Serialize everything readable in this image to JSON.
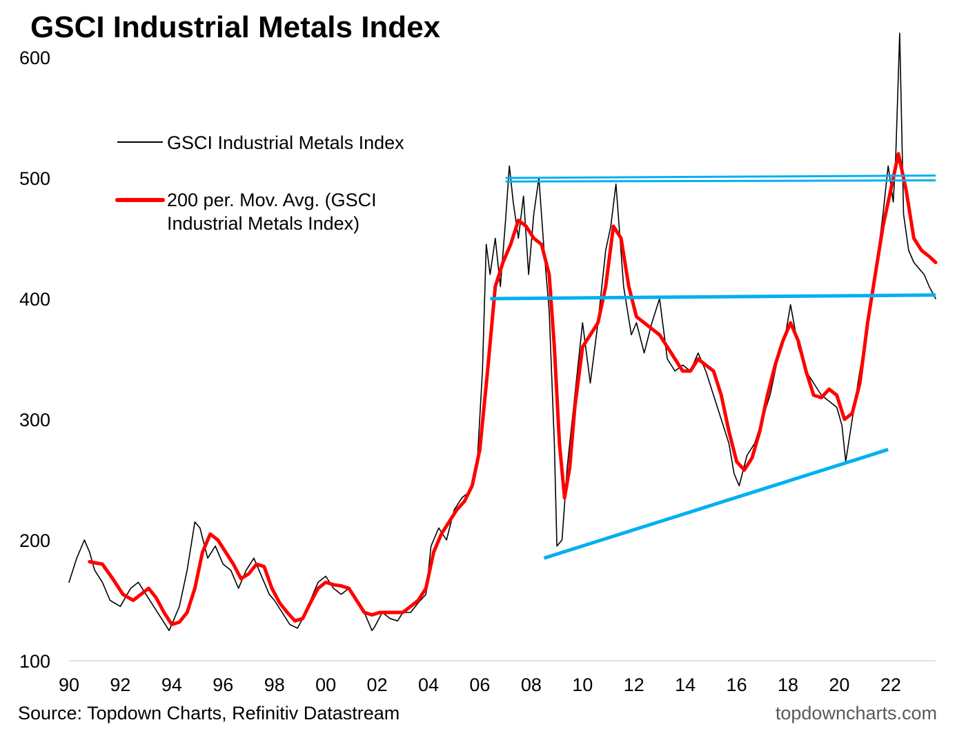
{
  "chart_data": {
    "type": "line",
    "title": "GSCI Industrial Metals Index",
    "xlabel": "",
    "ylabel": "",
    "xlim": [
      1990,
      2023.75
    ],
    "ylim": [
      100,
      620
    ],
    "y_ticks": [
      "100",
      "200",
      "300",
      "400",
      "500",
      "600"
    ],
    "x_ticks": [
      "90",
      "92",
      "94",
      "96",
      "98",
      "00",
      "02",
      "04",
      "06",
      "08",
      "10",
      "12",
      "14",
      "16",
      "18",
      "20",
      "22"
    ],
    "grid": false,
    "legend_position": "top-left",
    "series": [
      {
        "name": "GSCI Industrial Metals Index",
        "color": "#000000",
        "x": [
          1990.0,
          1990.3,
          1990.6,
          1990.8,
          1991.0,
          1991.3,
          1991.6,
          1992.0,
          1992.4,
          1992.7,
          1993.0,
          1993.3,
          1993.6,
          1993.9,
          1994.0,
          1994.3,
          1994.6,
          1994.9,
          1995.1,
          1995.4,
          1995.7,
          1996.0,
          1996.3,
          1996.6,
          1996.9,
          1997.2,
          1997.5,
          1997.8,
          1998.0,
          1998.3,
          1998.6,
          1998.9,
          1999.1,
          1999.4,
          1999.7,
          2000.0,
          2000.3,
          2000.6,
          2000.9,
          2001.2,
          2001.5,
          2001.8,
          2001.9,
          2002.2,
          2002.5,
          2002.8,
          2003.0,
          2003.3,
          2003.6,
          2003.9,
          2004.1,
          2004.4,
          2004.7,
          2005.0,
          2005.3,
          2005.6,
          2005.9,
          2006.1,
          2006.25,
          2006.4,
          2006.6,
          2006.8,
          2007.0,
          2007.15,
          2007.3,
          2007.5,
          2007.7,
          2007.9,
          2008.1,
          2008.3,
          2008.5,
          2008.7,
          2008.9,
          2009.0,
          2009.2,
          2009.4,
          2009.7,
          2010.0,
          2010.3,
          2010.6,
          2010.9,
          2011.1,
          2011.3,
          2011.6,
          2011.9,
          2012.1,
          2012.4,
          2012.7,
          2013.0,
          2013.3,
          2013.6,
          2013.9,
          2014.2,
          2014.5,
          2014.8,
          2015.1,
          2015.4,
          2015.7,
          2015.9,
          2016.1,
          2016.4,
          2016.7,
          2017.0,
          2017.3,
          2017.6,
          2017.9,
          2018.1,
          2018.4,
          2018.7,
          2019.0,
          2019.3,
          2019.6,
          2019.9,
          2020.1,
          2020.25,
          2020.5,
          2020.8,
          2021.1,
          2021.4,
          2021.7,
          2021.9,
          2022.1,
          2022.2,
          2022.35,
          2022.5,
          2022.7,
          2022.9,
          2023.1,
          2023.3,
          2023.5,
          2023.75
        ],
        "y": [
          165,
          185,
          200,
          190,
          175,
          165,
          150,
          145,
          160,
          165,
          155,
          145,
          135,
          125,
          130,
          145,
          175,
          215,
          210,
          185,
          195,
          180,
          175,
          160,
          175,
          185,
          170,
          155,
          150,
          140,
          130,
          127,
          135,
          150,
          165,
          170,
          160,
          155,
          160,
          150,
          140,
          125,
          128,
          140,
          135,
          133,
          140,
          140,
          148,
          155,
          195,
          210,
          200,
          225,
          235,
          240,
          265,
          340,
          445,
          420,
          450,
          410,
          465,
          510,
          480,
          450,
          485,
          420,
          470,
          500,
          440,
          390,
          280,
          195,
          200,
          260,
          320,
          380,
          330,
          380,
          440,
          460,
          495,
          410,
          370,
          380,
          355,
          380,
          400,
          350,
          340,
          345,
          340,
          355,
          340,
          320,
          300,
          280,
          255,
          245,
          270,
          280,
          300,
          320,
          350,
          370,
          395,
          360,
          340,
          330,
          320,
          315,
          310,
          295,
          265,
          300,
          340,
          380,
          420,
          470,
          510,
          480,
          520,
          620,
          470,
          440,
          430,
          425,
          420,
          410,
          400
        ]
      },
      {
        "name": "200 per. Mov. Avg. (GSCI Industrial Metals Index)",
        "color": "#ff0000",
        "x": [
          1990.8,
          1991.3,
          1991.7,
          1992.1,
          1992.5,
          1992.8,
          1993.1,
          1993.4,
          1993.7,
          1994.0,
          1994.3,
          1994.6,
          1994.9,
          1995.2,
          1995.5,
          1995.8,
          1996.1,
          1996.4,
          1996.7,
          1997.0,
          1997.3,
          1997.6,
          1997.9,
          1998.2,
          1998.5,
          1998.8,
          1999.1,
          1999.4,
          1999.7,
          2000.0,
          2000.3,
          2000.6,
          2000.9,
          2001.2,
          2001.5,
          2001.8,
          2002.1,
          2002.4,
          2002.7,
          2003.0,
          2003.3,
          2003.6,
          2003.9,
          2004.2,
          2004.5,
          2004.8,
          2005.1,
          2005.4,
          2005.7,
          2006.0,
          2006.3,
          2006.6,
          2006.9,
          2007.2,
          2007.5,
          2007.8,
          2008.1,
          2008.4,
          2008.7,
          2008.9,
          2009.1,
          2009.3,
          2009.5,
          2009.7,
          2010.0,
          2010.3,
          2010.6,
          2010.9,
          2011.2,
          2011.5,
          2011.8,
          2012.1,
          2012.4,
          2012.7,
          2013.0,
          2013.3,
          2013.6,
          2013.9,
          2014.2,
          2014.5,
          2014.8,
          2015.1,
          2015.4,
          2015.7,
          2016.0,
          2016.3,
          2016.6,
          2016.9,
          2017.2,
          2017.5,
          2017.8,
          2018.1,
          2018.4,
          2018.7,
          2019.0,
          2019.3,
          2019.6,
          2019.9,
          2020.2,
          2020.5,
          2020.8,
          2021.1,
          2021.4,
          2021.7,
          2022.0,
          2022.3,
          2022.6,
          2022.9,
          2023.2,
          2023.5,
          2023.75
        ],
        "y": [
          182,
          180,
          168,
          155,
          150,
          155,
          160,
          152,
          140,
          130,
          132,
          140,
          160,
          190,
          205,
          200,
          190,
          180,
          168,
          172,
          180,
          178,
          160,
          148,
          140,
          133,
          135,
          148,
          160,
          165,
          163,
          162,
          160,
          150,
          140,
          138,
          140,
          140,
          140,
          140,
          145,
          150,
          160,
          190,
          205,
          215,
          225,
          232,
          245,
          275,
          340,
          410,
          430,
          445,
          465,
          460,
          450,
          445,
          420,
          360,
          280,
          235,
          260,
          310,
          360,
          370,
          380,
          410,
          460,
          450,
          410,
          385,
          380,
          375,
          370,
          360,
          350,
          340,
          340,
          350,
          345,
          340,
          320,
          290,
          265,
          258,
          268,
          290,
          320,
          345,
          365,
          380,
          365,
          340,
          320,
          318,
          325,
          320,
          300,
          305,
          330,
          380,
          420,
          460,
          490,
          520,
          490,
          450,
          440,
          435,
          430
        ]
      }
    ],
    "annotations": [
      {
        "type": "trendline",
        "label": "",
        "color": "#00b0f0",
        "x": [
          2007.0,
          2023.75
        ],
        "y": [
          500,
          502
        ]
      },
      {
        "type": "trendline",
        "label": "",
        "color": "#00b0f0",
        "x": [
          2007.0,
          2023.75
        ],
        "y": [
          497,
          498
        ]
      },
      {
        "type": "trendline",
        "label": "",
        "color": "#00b0f0",
        "x": [
          2006.4,
          2023.75
        ],
        "y": [
          400,
          403
        ]
      },
      {
        "type": "trendline",
        "label": "",
        "color": "#00b0f0",
        "x": [
          2008.5,
          2021.9
        ],
        "y": [
          185,
          275
        ]
      }
    ]
  },
  "legend": [
    {
      "label_line1": "GSCI Industrial Metals Index",
      "label_line2": ""
    },
    {
      "label_line1": "200 per. Mov. Avg. (GSCI",
      "label_line2": "Industrial Metals Index)"
    }
  ],
  "source": "Source: Topdown Charts, Refinitiv Datastream",
  "brand": "topdowncharts.com"
}
